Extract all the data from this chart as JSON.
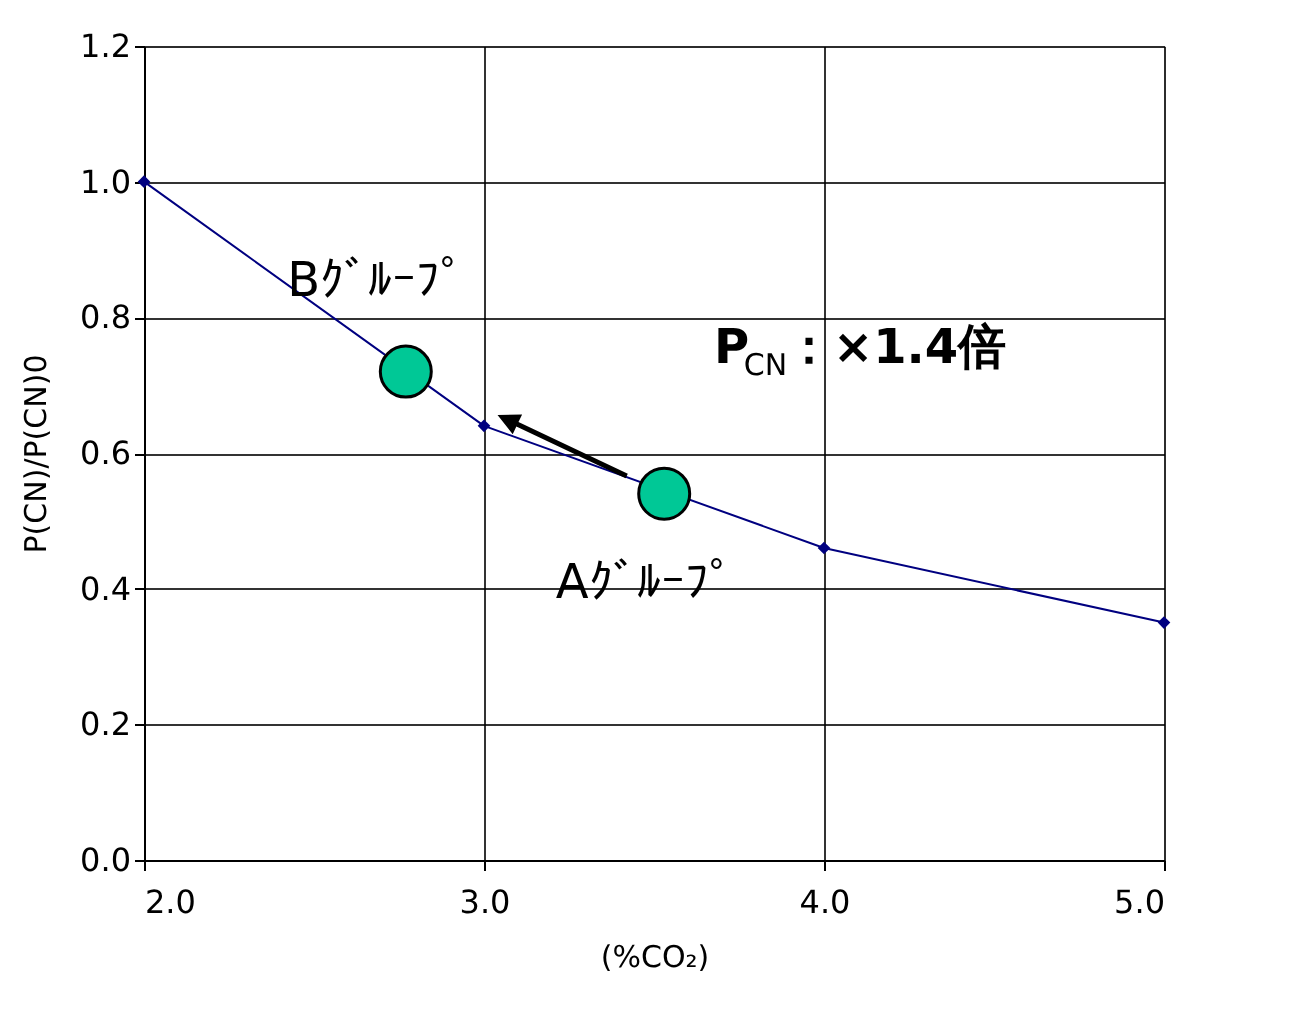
{
  "chart_data": {
    "type": "line",
    "xlabel": "(%CO₂)",
    "ylabel": "P(CN)/P(CN)0",
    "series": [
      {
        "type": "line",
        "color": "#000080",
        "marker": "diamond",
        "x": [
          2.0,
          3.0,
          4.0,
          5.0
        ],
        "values": [
          1.0,
          0.64,
          0.46,
          0.35
        ]
      },
      {
        "type": "scatter",
        "color": "#00c896",
        "marker": "circle",
        "x": [
          3.53,
          2.77
        ],
        "values": [
          0.54,
          0.72
        ]
      }
    ],
    "annotations": [
      {
        "text": "Aｸﾞﾙｰﾌﾟ",
        "x": 3.53,
        "y": 0.54
      },
      {
        "text": "Bｸﾞﾙｰﾌﾟ",
        "x": 2.77,
        "y": 0.72
      },
      "P$_{CN}$：×1.4倍"
    ],
    "xlim": [
      2.0,
      5.0
    ],
    "xticks": [
      {
        "value": 2,
        "label": "2.0"
      },
      {
        "value": 3,
        "label": "3.0"
      },
      {
        "value": 4,
        "label": "4.0"
      },
      {
        "value": 5,
        "label": "5.0"
      }
    ],
    "ylim": [
      0.0,
      1.2
    ],
    "yticks": [
      {
        "value": 0,
        "label": "0.0"
      },
      {
        "value": 0.2,
        "label": "0.2"
      },
      {
        "value": 0.4,
        "label": "0.4"
      },
      {
        "value": 0.6,
        "label": "0.6"
      },
      {
        "value": 0.8,
        "label": "0.8"
      },
      {
        "value": 1.0,
        "label": "1.0"
      },
      {
        "value": 1.2,
        "label": "1.2"
      }
    ],
    "grid": true
  }
}
